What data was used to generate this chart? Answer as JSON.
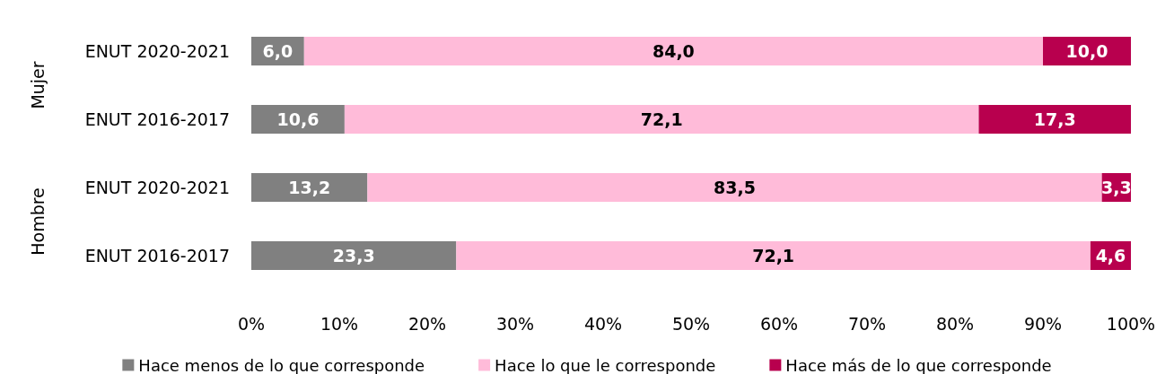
{
  "chart_data": {
    "type": "bar",
    "orientation": "horizontal",
    "stacked": true,
    "categories": [
      "ENUT 2020-2021",
      "ENUT 2016-2017",
      "ENUT 2020-2021",
      "ENUT 2016-2017"
    ],
    "annotations": [
      "Mujer",
      "Hombre"
    ],
    "series": [
      {
        "name": "Hace menos de lo que corresponde",
        "color": "#808080",
        "values": [
          6.0,
          10.6,
          13.2,
          23.3
        ],
        "value_labels": [
          "6,0",
          "10,6",
          "13,2",
          "23,3"
        ]
      },
      {
        "name": "Hace lo que le corresponde",
        "color": "#ffbbd9",
        "values": [
          84.0,
          72.1,
          83.5,
          72.1
        ],
        "value_labels": [
          "84,0",
          "72,1",
          "83,5",
          "72,1"
        ]
      },
      {
        "name": "Hace más de lo que corresponde",
        "color": "#b8004e",
        "values": [
          10.0,
          17.3,
          3.3,
          4.6
        ],
        "value_labels": [
          "10,0",
          "17,3",
          "3,3",
          "4,6"
        ]
      }
    ],
    "xlim": [
      0,
      100
    ],
    "xticks": [
      {
        "value": 0,
        "label": "0%"
      },
      {
        "value": 10,
        "label": "10%"
      },
      {
        "value": 20,
        "label": "20%"
      },
      {
        "value": 30,
        "label": "30%"
      },
      {
        "value": 40,
        "label": "40%"
      },
      {
        "value": 50,
        "label": "50%"
      },
      {
        "value": 60,
        "label": "60%"
      },
      {
        "value": 70,
        "label": "70%"
      },
      {
        "value": 80,
        "label": "80%"
      },
      {
        "value": 90,
        "label": "90%"
      },
      {
        "value": 100,
        "label": "100%"
      }
    ],
    "grid": false,
    "legend": "bottom"
  }
}
